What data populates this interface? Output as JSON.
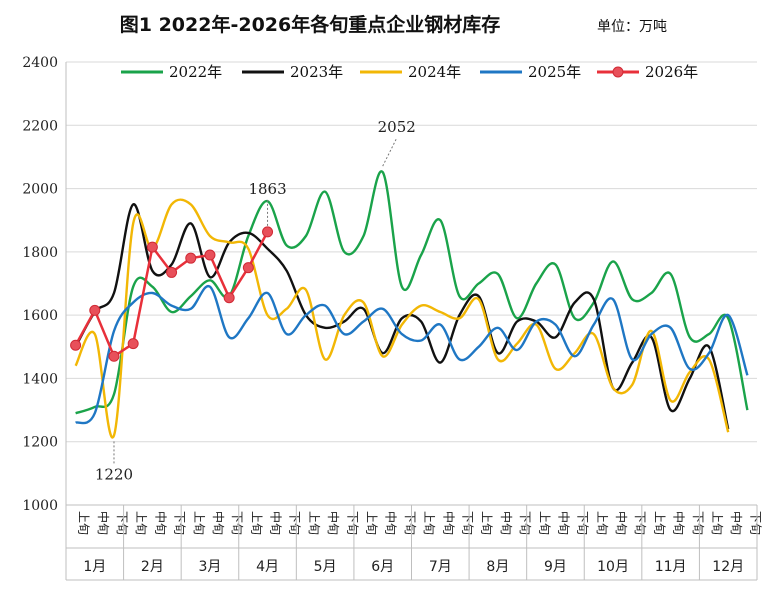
{
  "title": "图1 2022年-2026年各旬重点企业钢材库存",
  "unit": "单位：万吨",
  "chart_data": {
    "type": "line",
    "ylim": [
      1000,
      2400
    ],
    "yticks": [
      1000,
      1200,
      1400,
      1600,
      1800,
      2000,
      2200,
      2400
    ],
    "grid": true,
    "legend_position": "top",
    "dekad_labels": [
      "上旬",
      "中旬",
      "下旬"
    ],
    "months": [
      "1月",
      "2月",
      "3月",
      "4月",
      "5月",
      "6月",
      "7月",
      "8月",
      "9月",
      "10月",
      "11月",
      "12月"
    ],
    "series": [
      {
        "name": "2022年",
        "color": "#1aa34a",
        "markers": false,
        "values": [
          1290,
          1310,
          1350,
          1690,
          1690,
          1610,
          1660,
          1710,
          1660,
          1850,
          1960,
          1820,
          1850,
          1990,
          1800,
          1850,
          2052,
          1690,
          1790,
          1900,
          1660,
          1700,
          1730,
          1590,
          1700,
          1760,
          1590,
          1640,
          1770,
          1650,
          1670,
          1730,
          1530,
          1540,
          1590,
          1300
        ]
      },
      {
        "name": "2023年",
        "color": "#111111",
        "markers": false,
        "values": [
          1500,
          1610,
          1670,
          1950,
          1740,
          1760,
          1890,
          1720,
          1830,
          1860,
          1810,
          1740,
          1600,
          1560,
          1580,
          1620,
          1480,
          1590,
          1580,
          1450,
          1600,
          1660,
          1480,
          1580,
          1580,
          1530,
          1640,
          1650,
          1370,
          1450,
          1530,
          1300,
          1400,
          1500,
          1240
        ]
      },
      {
        "name": "2024年",
        "color": "#f2b705",
        "markers": false,
        "values": [
          1440,
          1540,
          1220,
          1890,
          1810,
          1950,
          1950,
          1850,
          1830,
          1810,
          1600,
          1620,
          1680,
          1460,
          1600,
          1640,
          1470,
          1570,
          1630,
          1610,
          1590,
          1650,
          1460,
          1510,
          1570,
          1430,
          1480,
          1540,
          1370,
          1380,
          1550,
          1330,
          1420,
          1460,
          1230
        ]
      },
      {
        "name": "2025年",
        "color": "#1f77c4",
        "markers": false,
        "values": [
          1260,
          1290,
          1550,
          1640,
          1670,
          1630,
          1620,
          1690,
          1530,
          1590,
          1670,
          1540,
          1600,
          1630,
          1540,
          1580,
          1620,
          1540,
          1520,
          1570,
          1460,
          1500,
          1560,
          1490,
          1580,
          1570,
          1470,
          1570,
          1650,
          1460,
          1540,
          1560,
          1430,
          1480,
          1600,
          1410
        ]
      },
      {
        "name": "2026年",
        "color": "#e8303a",
        "markers": true,
        "values": [
          1505,
          1615,
          1470,
          1510,
          1815,
          1735,
          1780,
          1790,
          1655,
          1750,
          1863
        ]
      }
    ],
    "annotations": [
      {
        "text": "2052",
        "series": "2022年",
        "index": 16
      },
      {
        "text": "1863",
        "series": "2026年",
        "index": 10
      },
      {
        "text": "1220",
        "series": "2024年",
        "index": 2
      }
    ]
  }
}
